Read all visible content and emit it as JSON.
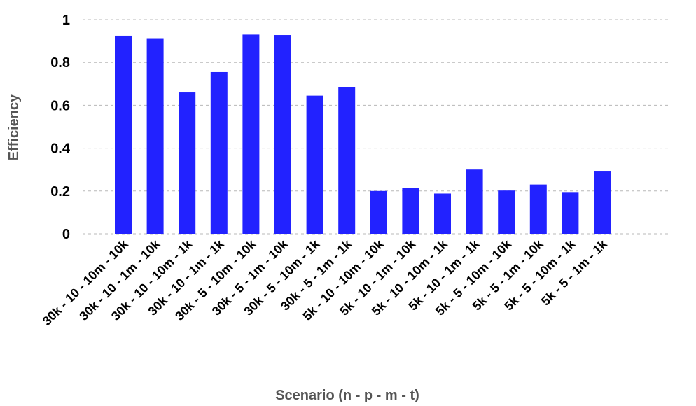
{
  "chart_data": {
    "type": "bar",
    "title": "",
    "xlabel": "Scenario (n - p - m - t)",
    "ylabel": "Efficiency",
    "ylim": [
      0,
      1
    ],
    "yticks": [
      "0",
      "0.2",
      "0.4",
      "0.6",
      "0.8",
      "1"
    ],
    "grid": true,
    "legend": "none",
    "bar_color": "#2222ff",
    "categories": [
      "30k - 10 - 10m - 10k",
      "30k - 10 - 1m - 10k",
      "30k - 10 - 10m - 1k",
      "30k - 10 - 1m - 1k",
      "30k - 5 - 10m - 10k",
      "30k - 5 - 1m - 10k",
      "30k - 5 - 10m - 1k",
      "30k - 5 - 1m - 1k",
      "5k - 10 - 10m - 10k",
      "5k - 10 - 1m - 10k",
      "5k - 10 - 10m - 1k",
      "5k - 10 - 1m - 1k",
      "5k - 5 - 10m - 10k",
      "5k - 5 - 1m - 10k",
      "5k - 5 - 10m - 1k",
      "5k - 5 - 1m - 1k"
    ],
    "values": [
      0.925,
      0.91,
      0.66,
      0.755,
      0.93,
      0.928,
      0.645,
      0.683,
      0.2,
      0.215,
      0.188,
      0.3,
      0.202,
      0.23,
      0.195,
      0.294
    ]
  }
}
